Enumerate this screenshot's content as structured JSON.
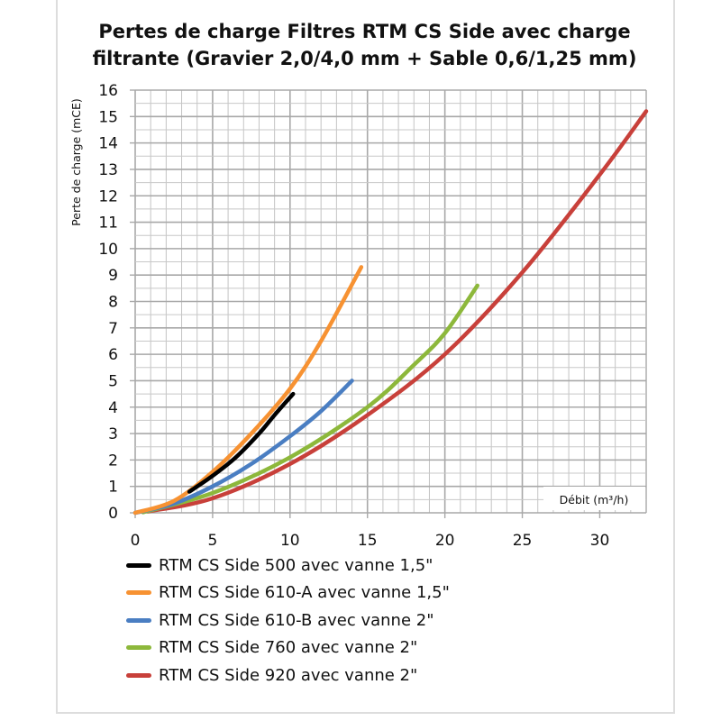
{
  "chart_data": {
    "type": "line",
    "title": "Pertes de charge Filtres RTM CS Side avec charge filtrante (Gravier 2,0/4,0 mm + Sable 0,6/1,25 mm)",
    "title_lines": [
      "Pertes de charge Filtres RTM CS Side avec charge",
      "filtrante (Gravier 2,0/4,0 mm + Sable 0,6/1,25 mm)"
    ],
    "xlabel": "Débit (m³/h)",
    "ylabel": "Perte de charge  (mCE)",
    "xlim": [
      0,
      33
    ],
    "ylim": [
      0,
      16
    ],
    "x_ticks": [
      "0",
      "5",
      "10",
      "15",
      "20",
      "25",
      "30"
    ],
    "y_ticks": [
      "0",
      "1",
      "2",
      "3",
      "4",
      "5",
      "6",
      "7",
      "8",
      "9",
      "10",
      "11",
      "12",
      "13",
      "14",
      "15",
      "16"
    ],
    "grid": true,
    "legend_position": "bottom",
    "series": [
      {
        "name": "RTM CS Side 500 avec vanne 1,5\"",
        "color": "#000000",
        "points": [
          [
            3.5,
            0.8
          ],
          [
            5,
            1.4
          ],
          [
            6.5,
            2.1
          ],
          [
            8,
            3.0
          ],
          [
            9,
            3.7
          ],
          [
            10.2,
            4.5
          ]
        ]
      },
      {
        "name": "RTM CS Side 610-A avec vanne 1,5\"",
        "color": "#F79232",
        "points": [
          [
            0,
            0
          ],
          [
            2.5,
            0.45
          ],
          [
            5,
            1.55
          ],
          [
            7.5,
            3.0
          ],
          [
            10,
            4.7
          ],
          [
            12,
            6.5
          ],
          [
            14.6,
            9.3
          ]
        ]
      },
      {
        "name": "RTM CS Side 610-B avec vanne 2\"",
        "color": "#4A7EC2",
        "points": [
          [
            0,
            0
          ],
          [
            2.5,
            0.35
          ],
          [
            5,
            1.0
          ],
          [
            7.5,
            1.85
          ],
          [
            10,
            2.9
          ],
          [
            12,
            3.85
          ],
          [
            14,
            5.0
          ]
        ]
      },
      {
        "name": "RTM CS Side 760 avec vanne 2\"",
        "color": "#8DB83B",
        "points": [
          [
            0.5,
            0.02
          ],
          [
            5,
            0.75
          ],
          [
            10,
            2.1
          ],
          [
            15,
            4.0
          ],
          [
            18,
            5.6
          ],
          [
            20,
            6.8
          ],
          [
            22.1,
            8.6
          ]
        ]
      },
      {
        "name": "RTM CS Side 920 avec vanne 2\"",
        "color": "#C8403A",
        "points": [
          [
            0.8,
            0.05
          ],
          [
            5,
            0.55
          ],
          [
            10,
            1.85
          ],
          [
            15,
            3.7
          ],
          [
            20,
            6.0
          ],
          [
            25,
            9.1
          ],
          [
            30,
            12.8
          ],
          [
            33,
            15.2
          ]
        ]
      }
    ]
  }
}
